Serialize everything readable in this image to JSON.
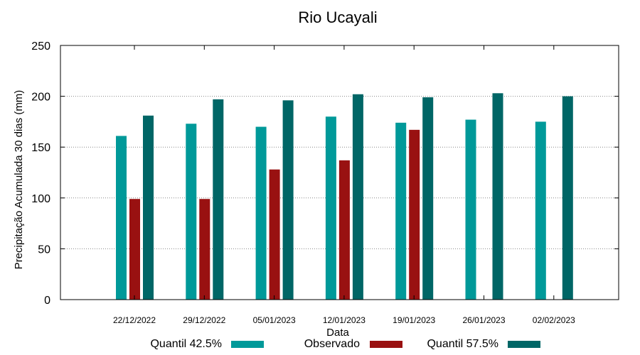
{
  "chart_data": {
    "type": "bar",
    "title": "Rio Ucayali",
    "xlabel": "Data",
    "ylabel": "Precipitação Acumulada 30 dias (mm)",
    "ylim": [
      0,
      250
    ],
    "yticks": [
      0,
      50,
      100,
      150,
      200,
      250
    ],
    "grid": true,
    "legend_position": "bottom",
    "categories": [
      "22/12/2022",
      "29/12/2022",
      "05/01/2023",
      "12/01/2023",
      "19/01/2023",
      "26/01/2023",
      "02/02/2023"
    ],
    "series": [
      {
        "name": "Quantil 42.5%",
        "color": "#009999",
        "values": [
          161,
          173,
          170,
          180,
          174,
          177,
          175
        ]
      },
      {
        "name": "Observado",
        "color": "#991111",
        "values": [
          99,
          99,
          128,
          137,
          167,
          null,
          null
        ]
      },
      {
        "name": "Quantil 57.5%",
        "color": "#006666",
        "values": [
          181,
          197,
          196,
          202,
          199,
          203,
          200
        ]
      }
    ]
  }
}
